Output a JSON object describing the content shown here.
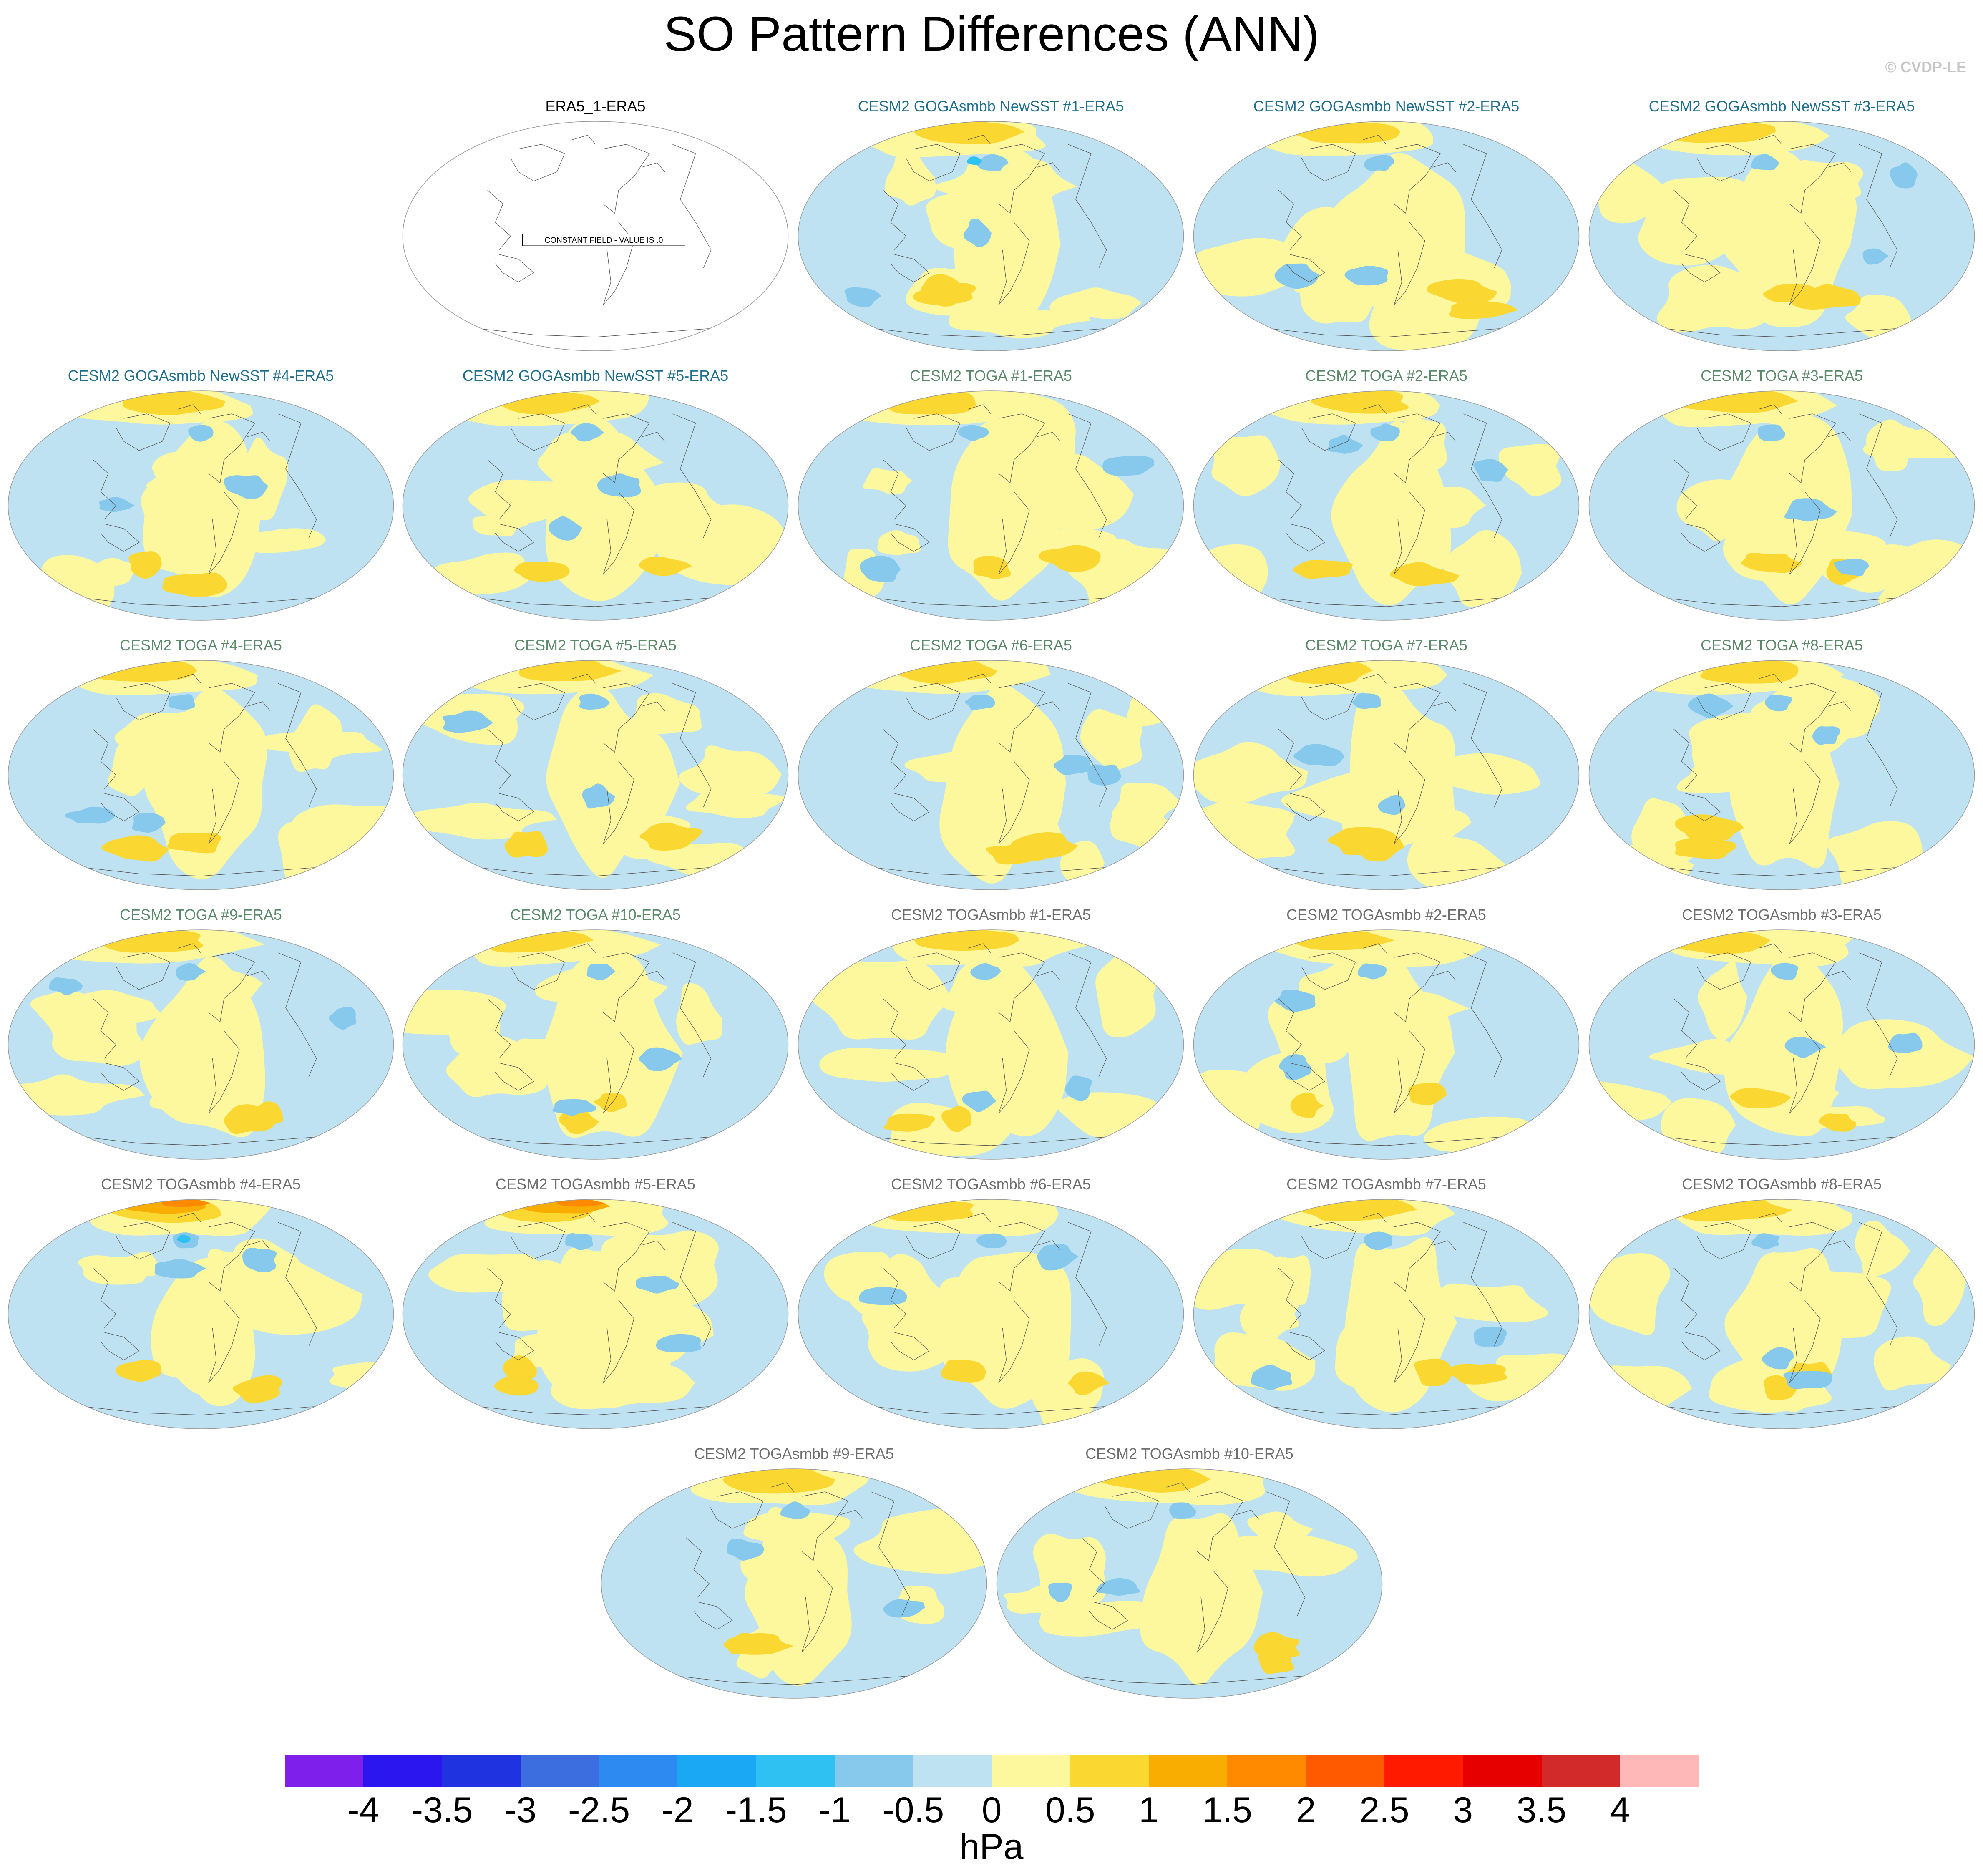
{
  "title": "SO Pattern Differences (ANN)",
  "copyright": "© CVDP-LE",
  "constant_field_note": "CONSTANT FIELD - VALUE IS .0",
  "panels": [
    {
      "title": "ERA5_1-ERA5",
      "title_color": "#000000",
      "variant": 0,
      "constant": true
    },
    {
      "title": "CESM2 GOGAsmbb NewSST #1-ERA5",
      "title_color": "#1f6e8c",
      "variant": 1
    },
    {
      "title": "CESM2 GOGAsmbb NewSST #2-ERA5",
      "title_color": "#1f6e8c",
      "variant": 2
    },
    {
      "title": "CESM2 GOGAsmbb NewSST #3-ERA5",
      "title_color": "#1f6e8c",
      "variant": 3
    },
    {
      "title": "CESM2 GOGAsmbb NewSST #4-ERA5",
      "title_color": "#1f6e8c",
      "variant": 4
    },
    {
      "title": "CESM2 GOGAsmbb NewSST #5-ERA5",
      "title_color": "#1f6e8c",
      "variant": 5
    },
    {
      "title": "CESM2 TOGA #1-ERA5",
      "title_color": "#5b8a6a",
      "variant": 6
    },
    {
      "title": "CESM2 TOGA #2-ERA5",
      "title_color": "#5b8a6a",
      "variant": 7
    },
    {
      "title": "CESM2 TOGA #3-ERA5",
      "title_color": "#5b8a6a",
      "variant": 8
    },
    {
      "title": "CESM2 TOGA #4-ERA5",
      "title_color": "#5b8a6a",
      "variant": 9
    },
    {
      "title": "CESM2 TOGA #5-ERA5",
      "title_color": "#5b8a6a",
      "variant": 10
    },
    {
      "title": "CESM2 TOGA #6-ERA5",
      "title_color": "#5b8a6a",
      "variant": 11
    },
    {
      "title": "CESM2 TOGA #7-ERA5",
      "title_color": "#5b8a6a",
      "variant": 12
    },
    {
      "title": "CESM2 TOGA #8-ERA5",
      "title_color": "#5b8a6a",
      "variant": 13
    },
    {
      "title": "CESM2 TOGA #9-ERA5",
      "title_color": "#5b8a6a",
      "variant": 14
    },
    {
      "title": "CESM2 TOGA #10-ERA5",
      "title_color": "#5b8a6a",
      "variant": 15
    },
    {
      "title": "CESM2 TOGAsmbb #1-ERA5",
      "title_color": "#6e6e6e",
      "variant": 16
    },
    {
      "title": "CESM2 TOGAsmbb #2-ERA5",
      "title_color": "#6e6e6e",
      "variant": 17
    },
    {
      "title": "CESM2 TOGAsmbb #3-ERA5",
      "title_color": "#6e6e6e",
      "variant": 18
    },
    {
      "title": "CESM2 TOGAsmbb #4-ERA5",
      "title_color": "#6e6e6e",
      "variant": 19
    },
    {
      "title": "CESM2 TOGAsmbb #5-ERA5",
      "title_color": "#6e6e6e",
      "variant": 20
    },
    {
      "title": "CESM2 TOGAsmbb #6-ERA5",
      "title_color": "#6e6e6e",
      "variant": 21
    },
    {
      "title": "CESM2 TOGAsmbb #7-ERA5",
      "title_color": "#6e6e6e",
      "variant": 22
    },
    {
      "title": "CESM2 TOGAsmbb #8-ERA5",
      "title_color": "#6e6e6e",
      "variant": 23
    },
    {
      "title": "CESM2 TOGAsmbb #9-ERA5",
      "title_color": "#6e6e6e",
      "variant": 24
    },
    {
      "title": "CESM2 TOGAsmbb #10-ERA5",
      "title_color": "#6e6e6e",
      "variant": 25
    }
  ],
  "colorbar": {
    "colors": [
      "#7f1fec",
      "#2b16f0",
      "#1f34e0",
      "#3d6edf",
      "#2d8af0",
      "#1aa8f5",
      "#2ec1f2",
      "#86c9ec",
      "#bfe2f2",
      "#fdf79d",
      "#fbd731",
      "#f9ad00",
      "#ff8a00",
      "#ff5a00",
      "#ff1a00",
      "#e60000",
      "#d22a2a",
      "#ffb8b8"
    ],
    "tick_labels": [
      "-4",
      "-3.5",
      "-3",
      "-2.5",
      "-2",
      "-1.5",
      "-1",
      "-0.5",
      "0",
      "0.5",
      "1",
      "1.5",
      "2",
      "2.5",
      "3",
      "3.5",
      "4"
    ],
    "units": "hPa"
  },
  "palette": {
    "neg_light": "#bfe2f2",
    "neg_mid": "#86c9ec",
    "neg_strong": "#2ec1f2",
    "pos_light": "#fdf79d",
    "pos_mid": "#fbd731",
    "pos_strong": "#f9ad00",
    "pos_extreme": "#ff8a00",
    "coast": "#5a5a5a"
  }
}
